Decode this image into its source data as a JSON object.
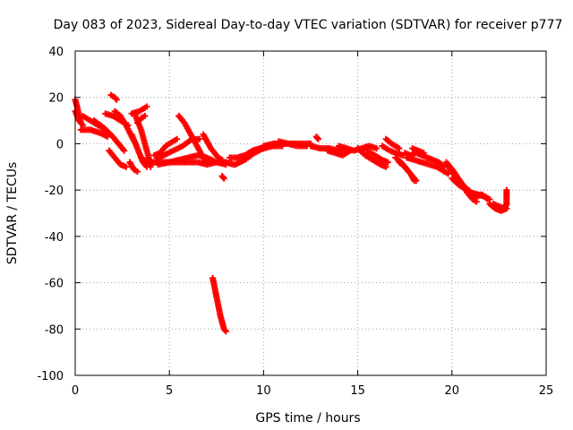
{
  "chart_data": {
    "type": "scatter",
    "title": "Day 083 of 2023, Sidereal Day-to-day VTEC variation (SDTVAR) for receiver p777",
    "xlabel": "GPS time / hours",
    "ylabel": "SDTVAR / TECUs",
    "xlim": [
      0,
      25
    ],
    "ylim": [
      -100,
      40
    ],
    "xticks": [
      0,
      5,
      10,
      15,
      20,
      25
    ],
    "yticks": [
      -100,
      -80,
      -60,
      -40,
      -20,
      0,
      20,
      40
    ],
    "grid": true,
    "marker": "+",
    "color": "#ff0000",
    "series": [
      {
        "name": "SDTVAR",
        "tracks": [
          [
            [
              0.0,
              19
            ],
            [
              0.1,
              16
            ],
            [
              0.2,
              12
            ],
            [
              0.3,
              9
            ]
          ],
          [
            [
              0.0,
              14
            ],
            [
              0.2,
              10
            ],
            [
              0.4,
              8
            ]
          ],
          [
            [
              0.3,
              6
            ],
            [
              0.8,
              6
            ],
            [
              1.2,
              5
            ],
            [
              1.5,
              4
            ],
            [
              1.7,
              3
            ]
          ],
          [
            [
              0.4,
              12
            ],
            [
              0.8,
              10
            ],
            [
              1.2,
              8
            ],
            [
              1.6,
              6
            ]
          ],
          [
            [
              1.0,
              10
            ],
            [
              1.5,
              7
            ],
            [
              2.0,
              3
            ],
            [
              2.3,
              0
            ],
            [
              2.6,
              -3
            ]
          ],
          [
            [
              1.8,
              -3
            ],
            [
              2.1,
              -6
            ],
            [
              2.4,
              -9
            ],
            [
              2.7,
              -10
            ]
          ],
          [
            [
              1.9,
              21
            ],
            [
              2.1,
              20
            ],
            [
              2.2,
              19
            ]
          ],
          [
            [
              1.6,
              13
            ],
            [
              2.0,
              12
            ],
            [
              2.4,
              10
            ],
            [
              2.8,
              8
            ]
          ],
          [
            [
              2.1,
              14
            ],
            [
              2.4,
              12
            ],
            [
              2.7,
              8
            ],
            [
              3.0,
              3
            ],
            [
              3.2,
              0
            ]
          ],
          [
            [
              2.9,
              -8
            ],
            [
              3.1,
              -11
            ],
            [
              3.3,
              -12
            ]
          ],
          [
            [
              3.0,
              4
            ],
            [
              3.2,
              0
            ],
            [
              3.4,
              -4
            ],
            [
              3.6,
              -8
            ],
            [
              3.8,
              -10
            ]
          ],
          [
            [
              3.2,
              12
            ],
            [
              3.5,
              6
            ],
            [
              3.7,
              0
            ],
            [
              3.9,
              -6
            ],
            [
              4.0,
              -10
            ]
          ],
          [
            [
              3.0,
              13
            ],
            [
              3.4,
              14
            ],
            [
              3.8,
              16
            ]
          ],
          [
            [
              3.3,
              9
            ],
            [
              3.5,
              11
            ],
            [
              3.7,
              12
            ]
          ],
          [
            [
              3.5,
              -6
            ],
            [
              3.8,
              -8
            ],
            [
              4.0,
              -9
            ]
          ],
          [
            [
              4.0,
              -8
            ],
            [
              4.5,
              -8
            ],
            [
              5.0,
              -8
            ],
            [
              5.5,
              -8
            ],
            [
              6.0,
              -8
            ],
            [
              6.5,
              -8
            ],
            [
              7.0,
              -9
            ],
            [
              7.5,
              -8
            ],
            [
              8.0,
              -9
            ]
          ],
          [
            [
              4.2,
              -5
            ],
            [
              4.5,
              -4
            ],
            [
              4.8,
              -1
            ],
            [
              5.2,
              1
            ],
            [
              5.4,
              2
            ]
          ],
          [
            [
              4.3,
              -7
            ],
            [
              4.7,
              -5
            ],
            [
              5.2,
              -3
            ],
            [
              5.7,
              -1
            ],
            [
              6.2,
              2
            ],
            [
              6.6,
              2
            ]
          ],
          [
            [
              4.4,
              -9
            ],
            [
              5.0,
              -8
            ],
            [
              5.5,
              -7
            ],
            [
              6.0,
              -6
            ],
            [
              6.5,
              -5
            ],
            [
              7.0,
              -6
            ],
            [
              7.5,
              -8
            ]
          ],
          [
            [
              5.5,
              12
            ],
            [
              5.8,
              9
            ],
            [
              6.0,
              6
            ],
            [
              6.2,
              3
            ],
            [
              6.4,
              0
            ],
            [
              6.6,
              -3
            ],
            [
              6.8,
              -6
            ],
            [
              7.0,
              -8
            ]
          ],
          [
            [
              6.8,
              4
            ],
            [
              7.0,
              1
            ],
            [
              7.2,
              -2
            ],
            [
              7.4,
              -4
            ],
            [
              7.6,
              -6
            ],
            [
              7.8,
              -7
            ]
          ],
          [
            [
              7.6,
              -8
            ],
            [
              8.0,
              -8
            ],
            [
              8.4,
              -9
            ]
          ],
          [
            [
              7.8,
              -14
            ],
            [
              7.9,
              -15
            ]
          ],
          [
            [
              7.3,
              -58
            ],
            [
              7.4,
              -62
            ],
            [
              7.5,
              -66
            ],
            [
              7.6,
              -70
            ],
            [
              7.7,
              -74
            ],
            [
              7.8,
              -77
            ],
            [
              7.9,
              -80
            ],
            [
              8.0,
              -81
            ]
          ],
          [
            [
              8.2,
              -6
            ],
            [
              8.6,
              -6
            ],
            [
              9.0,
              -5
            ],
            [
              9.4,
              -3
            ],
            [
              9.8,
              -2
            ],
            [
              10.2,
              -1
            ]
          ],
          [
            [
              8.5,
              -9
            ],
            [
              9.0,
              -7
            ],
            [
              9.5,
              -4
            ],
            [
              10.0,
              -2
            ],
            [
              10.5,
              -1
            ],
            [
              11.0,
              -1
            ]
          ],
          [
            [
              10.0,
              -1
            ],
            [
              10.5,
              0
            ],
            [
              11.0,
              0
            ],
            [
              11.5,
              0
            ],
            [
              12.0,
              0
            ],
            [
              12.5,
              0
            ]
          ],
          [
            [
              10.8,
              1
            ],
            [
              11.3,
              0
            ],
            [
              11.8,
              -1
            ],
            [
              12.3,
              -1
            ]
          ],
          [
            [
              12.5,
              -1
            ],
            [
              13.0,
              -2
            ],
            [
              13.5,
              -2
            ],
            [
              14.0,
              -3
            ],
            [
              14.5,
              -3
            ]
          ],
          [
            [
              12.8,
              3
            ],
            [
              12.9,
              2
            ]
          ],
          [
            [
              13.4,
              -3
            ],
            [
              13.8,
              -4
            ],
            [
              14.2,
              -5
            ],
            [
              14.6,
              -3
            ]
          ],
          [
            [
              14.0,
              -1
            ],
            [
              14.4,
              -2
            ],
            [
              14.8,
              -3
            ],
            [
              15.2,
              -2
            ],
            [
              15.6,
              -1
            ],
            [
              16.0,
              -2
            ]
          ],
          [
            [
              15.0,
              -2
            ],
            [
              15.4,
              -5
            ],
            [
              15.8,
              -7
            ],
            [
              16.2,
              -9
            ],
            [
              16.5,
              -10
            ]
          ],
          [
            [
              15.5,
              -3
            ],
            [
              15.9,
              -5
            ],
            [
              16.3,
              -7
            ],
            [
              16.6,
              -8
            ]
          ],
          [
            [
              16.3,
              -1
            ],
            [
              16.7,
              -3
            ],
            [
              17.0,
              -4
            ],
            [
              17.4,
              -5
            ]
          ],
          [
            [
              16.5,
              2
            ],
            [
              16.8,
              0
            ],
            [
              17.2,
              -2
            ]
          ],
          [
            [
              17.0,
              -6
            ],
            [
              17.3,
              -8
            ],
            [
              17.6,
              -11
            ],
            [
              17.8,
              -13
            ],
            [
              18.0,
              -16
            ]
          ],
          [
            [
              17.2,
              -8
            ],
            [
              17.5,
              -10
            ],
            [
              17.8,
              -13
            ],
            [
              18.1,
              -16
            ]
          ],
          [
            [
              17.5,
              -4
            ],
            [
              17.8,
              -5
            ],
            [
              18.1,
              -4
            ],
            [
              18.4,
              -5
            ],
            [
              18.7,
              -6
            ],
            [
              19.0,
              -7
            ],
            [
              19.3,
              -8
            ],
            [
              19.6,
              -10
            ]
          ],
          [
            [
              17.6,
              -6
            ],
            [
              18.0,
              -7
            ],
            [
              18.4,
              -8
            ],
            [
              18.8,
              -9
            ],
            [
              19.2,
              -10
            ],
            [
              19.6,
              -12
            ],
            [
              19.8,
              -13
            ]
          ],
          [
            [
              17.9,
              -2
            ],
            [
              18.2,
              -3
            ],
            [
              18.5,
              -4
            ]
          ],
          [
            [
              19.8,
              -10
            ],
            [
              20.2,
              -14
            ],
            [
              20.6,
              -18
            ],
            [
              21.0,
              -21
            ],
            [
              21.4,
              -22
            ],
            [
              21.8,
              -23
            ],
            [
              22.0,
              -24
            ]
          ],
          [
            [
              19.7,
              -8
            ],
            [
              20.1,
              -12
            ],
            [
              20.5,
              -17
            ],
            [
              20.8,
              -21
            ],
            [
              21.1,
              -24
            ],
            [
              21.3,
              -25
            ]
          ],
          [
            [
              20.0,
              -15
            ],
            [
              20.4,
              -18
            ],
            [
              20.8,
              -20
            ],
            [
              21.2,
              -22
            ],
            [
              21.6,
              -22
            ]
          ],
          [
            [
              21.3,
              -23
            ],
            [
              21.6,
              -22
            ],
            [
              21.9,
              -24
            ]
          ],
          [
            [
              22.0,
              -26
            ],
            [
              22.3,
              -28
            ],
            [
              22.6,
              -29
            ],
            [
              22.9,
              -28
            ]
          ],
          [
            [
              22.2,
              -26
            ],
            [
              22.5,
              -27
            ],
            [
              22.8,
              -28
            ],
            [
              22.9,
              -26
            ]
          ],
          [
            [
              22.9,
              -20
            ],
            [
              22.9,
              -23
            ],
            [
              22.9,
              -26
            ]
          ]
        ]
      }
    ]
  }
}
